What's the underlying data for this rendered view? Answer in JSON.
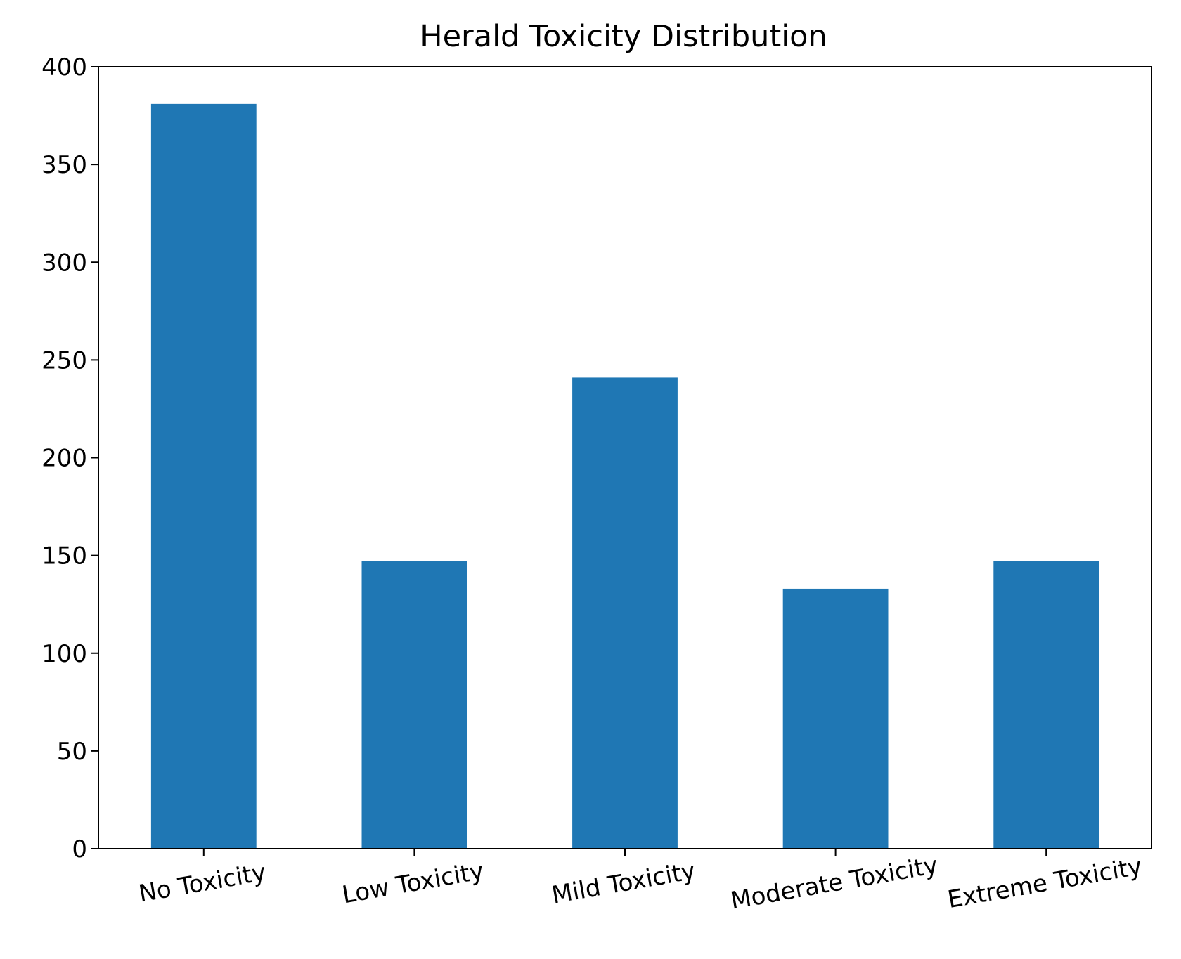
{
  "chart_data": {
    "type": "bar",
    "title": "Herald Toxicity Distribution",
    "xlabel": "",
    "ylabel": "",
    "categories": [
      "No Toxicity",
      "Low Toxicity",
      "Mild Toxicity",
      "Moderate Toxicity",
      "Extreme Toxicity"
    ],
    "values": [
      381,
      147,
      241,
      133,
      147
    ],
    "ylim": [
      0,
      400
    ],
    "yticks": [
      "0",
      "50",
      "100",
      "150",
      "200",
      "250",
      "300",
      "350",
      "400"
    ],
    "bar_color": "#1f77b4",
    "grid": false,
    "legend": "none",
    "xtick_rotation_deg": 10
  }
}
